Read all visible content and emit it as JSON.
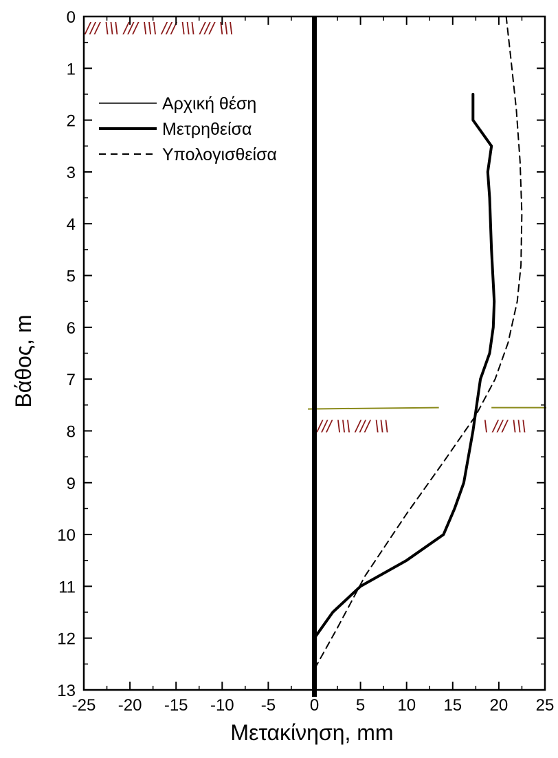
{
  "chart_data": {
    "type": "line",
    "title": "",
    "xlabel": "Μετακίνηση, mm",
    "ylabel": "Βάθος, m",
    "xlim": [
      -25,
      25
    ],
    "ylim": [
      13,
      0
    ],
    "y_inverted": true,
    "x_ticks": [
      "-25",
      "-20",
      "-15",
      "-10",
      "-5",
      "0",
      "5",
      "10",
      "15",
      "20",
      "25"
    ],
    "y_ticks": [
      "0",
      "1",
      "2",
      "3",
      "4",
      "5",
      "6",
      "7",
      "8",
      "9",
      "10",
      "11",
      "12",
      "13"
    ],
    "grid": false,
    "legend_position": "top-left",
    "series": [
      {
        "name": "Αρχική θέση",
        "style": "thin-solid",
        "x": [
          0,
          0
        ],
        "y": [
          0,
          13
        ]
      },
      {
        "name": "Μετρηθείσα",
        "style": "thick-solid",
        "x": [
          17.2,
          17.2,
          19.2,
          18.8,
          19.0,
          19.2,
          19.5,
          19.4,
          19.0,
          18.0,
          17.2,
          16.2,
          15.2,
          14.0,
          10.0,
          5.0,
          2.0,
          0.0
        ],
        "y": [
          1.5,
          2.0,
          2.5,
          3.0,
          3.5,
          4.5,
          5.5,
          6.0,
          6.5,
          7.0,
          8.0,
          9.0,
          9.5,
          10.0,
          10.5,
          11.0,
          11.5,
          12.0
        ]
      },
      {
        "name": "Υπολογισθείσα",
        "style": "dashed",
        "x": [
          20.8,
          21.3,
          21.9,
          22.3,
          22.5,
          22.4,
          22.0,
          21.0,
          19.6,
          17.5,
          14.0,
          10.0,
          5.5,
          2.5,
          0.0
        ],
        "y": [
          0.0,
          0.8,
          1.8,
          2.8,
          3.8,
          4.8,
          5.5,
          6.3,
          7.0,
          7.7,
          8.6,
          9.6,
          10.8,
          11.8,
          12.6
        ]
      }
    ],
    "annotations": {
      "top_hatch": "/// \\\\\\ /// \\\\\\   /// \\\\\\ /// \\\\\\",
      "mid_hatch_left": "/// \\\\\\ /// \\\\\\",
      "mid_hatch_right": "\\ /// \\\\\\",
      "water_level_depth": 7.55,
      "colors": {
        "hatch": "#8b1a1a",
        "water_line": "#8a8a1a",
        "pile": "#000000"
      }
    }
  }
}
